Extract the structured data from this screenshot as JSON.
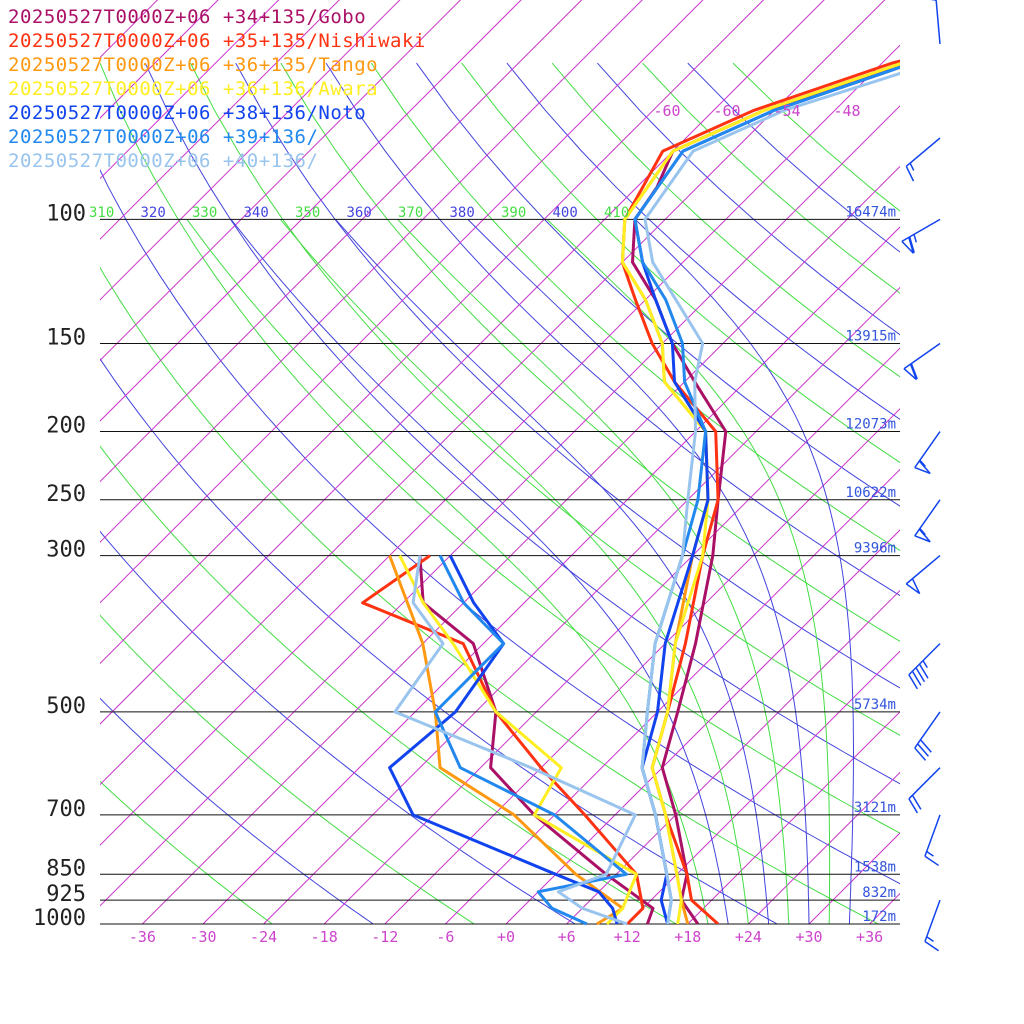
{
  "chart_data": {
    "type": "line",
    "title": "",
    "xlabel": "",
    "ylabel": "",
    "legend_placement": "top-left",
    "x_ticks": [
      "-36",
      "-30",
      "-24",
      "-18",
      "-12",
      "-6",
      "+0",
      "+6",
      "+12",
      "+18",
      "+24",
      "+30",
      "+36"
    ],
    "pressure_levels": [
      {
        "p": 100,
        "label": "100",
        "height": "16474m"
      },
      {
        "p": 150,
        "label": "150",
        "height": "13915m"
      },
      {
        "p": 200,
        "label": "200",
        "height": "12073m"
      },
      {
        "p": 250,
        "label": "250",
        "height": "10622m"
      },
      {
        "p": 300,
        "label": "300",
        "height": "9396m"
      },
      {
        "p": 500,
        "label": "500",
        "height": "5734m"
      },
      {
        "p": 700,
        "label": "700",
        "height": "3121m"
      },
      {
        "p": 850,
        "label": "850",
        "height": "1538m"
      },
      {
        "p": 925,
        "label": "925",
        "height": "832m"
      },
      {
        "p": 1000,
        "label": "1000",
        "height": "172m"
      }
    ],
    "mixing_ratio_labels": [
      "-60",
      "-60",
      "-54",
      "-48"
    ],
    "theta_labels": [
      {
        "v": "310",
        "color": "#44dd44"
      },
      {
        "v": "320",
        "color": "#4444dd"
      },
      {
        "v": "330",
        "color": "#44dd44"
      },
      {
        "v": "340",
        "color": "#4444dd"
      },
      {
        "v": "350",
        "color": "#44dd44"
      },
      {
        "v": "360",
        "color": "#4444dd"
      },
      {
        "v": "370",
        "color": "#44dd44"
      },
      {
        "v": "380",
        "color": "#4444dd"
      },
      {
        "v": "390",
        "color": "#44dd44"
      },
      {
        "v": "400",
        "color": "#4444dd"
      },
      {
        "v": "410",
        "color": "#44dd44"
      }
    ],
    "series": [
      {
        "name": "20250527T0000Z+06 +34+135/Gobo",
        "color": "#aa1166",
        "temperature": [
          [
            1000,
            19
          ],
          [
            925,
            15
          ],
          [
            850,
            13
          ],
          [
            700,
            6
          ],
          [
            600,
            0
          ],
          [
            500,
            -4
          ],
          [
            400,
            -9
          ],
          [
            300,
            -16
          ],
          [
            250,
            -21
          ],
          [
            200,
            -27
          ],
          [
            170,
            -35
          ],
          [
            150,
            -41
          ],
          [
            130,
            -47
          ],
          [
            115,
            -53
          ],
          [
            100,
            -57
          ],
          [
            90,
            -58
          ],
          [
            80,
            -60
          ],
          [
            70,
            -55
          ],
          [
            60,
            -45
          ],
          [
            50,
            -30
          ],
          [
            40,
            -18
          ]
        ],
        "dewpoint": [
          [
            1000,
            14
          ],
          [
            950,
            13
          ],
          [
            850,
            5
          ],
          [
            700,
            -8
          ],
          [
            600,
            -17
          ],
          [
            500,
            -22
          ],
          [
            400,
            -31
          ],
          [
            350,
            -40
          ],
          [
            300,
            -45
          ]
        ]
      },
      {
        "name": "20250527T0000Z+06 +35+135/Nishiwaki",
        "color": "#ff3311",
        "temperature": [
          [
            1000,
            21
          ],
          [
            925,
            16
          ],
          [
            850,
            13
          ],
          [
            700,
            5
          ],
          [
            600,
            -1
          ],
          [
            500,
            -5
          ],
          [
            400,
            -10
          ],
          [
            300,
            -17
          ],
          [
            250,
            -21
          ],
          [
            200,
            -28
          ],
          [
            170,
            -37
          ],
          [
            150,
            -43
          ],
          [
            130,
            -49
          ],
          [
            115,
            -54
          ],
          [
            100,
            -58
          ],
          [
            80,
            -61
          ],
          [
            70,
            -56
          ],
          [
            60,
            -47
          ],
          [
            50,
            -32
          ],
          [
            40,
            -20
          ]
        ],
        "dewpoint": [
          [
            1000,
            12
          ],
          [
            950,
            12
          ],
          [
            850,
            8
          ],
          [
            700,
            -3
          ],
          [
            600,
            -12
          ],
          [
            500,
            -22
          ],
          [
            400,
            -32
          ],
          [
            350,
            -46
          ],
          [
            300,
            -44
          ]
        ]
      },
      {
        "name": "20250527T0000Z+06 +36+135/Tango",
        "color": "#ff9911",
        "temperature": [
          [
            1000,
            18
          ],
          [
            925,
            15
          ],
          [
            850,
            12
          ],
          [
            700,
            5
          ],
          [
            600,
            -1
          ],
          [
            500,
            -5
          ],
          [
            400,
            -11
          ],
          [
            300,
            -18
          ],
          [
            250,
            -22
          ],
          [
            200,
            -29
          ],
          [
            170,
            -38
          ],
          [
            150,
            -42
          ],
          [
            130,
            -48
          ],
          [
            115,
            -54
          ],
          [
            100,
            -58
          ],
          [
            80,
            -60
          ],
          [
            70,
            -55
          ],
          [
            60,
            -46
          ],
          [
            50,
            -31
          ],
          [
            40,
            -19
          ]
        ],
        "dewpoint": [
          [
            1000,
            9
          ],
          [
            950,
            10
          ],
          [
            850,
            2
          ],
          [
            700,
            -10
          ],
          [
            600,
            -22
          ],
          [
            500,
            -28
          ],
          [
            400,
            -36
          ],
          [
            300,
            -48
          ]
        ]
      },
      {
        "name": "20250527T0000Z+06 +36+136/Awara",
        "color": "#ffee22",
        "temperature": [
          [
            1000,
            17
          ],
          [
            925,
            15
          ],
          [
            850,
            12
          ],
          [
            700,
            5
          ],
          [
            600,
            -1
          ],
          [
            500,
            -5
          ],
          [
            400,
            -11
          ],
          [
            300,
            -17
          ],
          [
            250,
            -22
          ],
          [
            200,
            -29
          ],
          [
            170,
            -38
          ],
          [
            150,
            -42
          ],
          [
            130,
            -48
          ],
          [
            115,
            -54
          ],
          [
            100,
            -58
          ],
          [
            80,
            -60
          ],
          [
            70,
            -55
          ],
          [
            60,
            -46
          ],
          [
            50,
            -31
          ],
          [
            40,
            -19
          ]
        ],
        "dewpoint": [
          [
            1000,
            10
          ],
          [
            950,
            10
          ],
          [
            850,
            8
          ],
          [
            700,
            -8
          ],
          [
            600,
            -10
          ],
          [
            500,
            -22
          ],
          [
            400,
            -33
          ],
          [
            350,
            -40
          ],
          [
            300,
            -47
          ]
        ]
      },
      {
        "name": "20250527T0000Z+06 +38+136/Noto",
        "color": "#1144ee",
        "temperature": [
          [
            1000,
            16
          ],
          [
            925,
            13
          ],
          [
            850,
            11
          ],
          [
            700,
            4
          ],
          [
            600,
            -2
          ],
          [
            500,
            -6
          ],
          [
            400,
            -12
          ],
          [
            300,
            -18
          ],
          [
            250,
            -22
          ],
          [
            200,
            -29
          ],
          [
            170,
            -37
          ],
          [
            150,
            -41
          ],
          [
            130,
            -47
          ],
          [
            115,
            -52
          ],
          [
            100,
            -57
          ],
          [
            80,
            -59
          ],
          [
            70,
            -54
          ],
          [
            60,
            -45
          ],
          [
            50,
            -30
          ],
          [
            40,
            -18
          ]
        ],
        "dewpoint": [
          [
            1000,
            11
          ],
          [
            950,
            9
          ],
          [
            900,
            6
          ],
          [
            850,
            0
          ],
          [
            700,
            -20
          ],
          [
            600,
            -27
          ],
          [
            500,
            -26
          ],
          [
            400,
            -28
          ],
          [
            350,
            -35
          ],
          [
            300,
            -42
          ]
        ]
      },
      {
        "name": "20250527T0000Z+06 +39+136/",
        "color": "#2288ee",
        "temperature": [
          [
            1000,
            16
          ],
          [
            925,
            14
          ],
          [
            850,
            11
          ],
          [
            700,
            4
          ],
          [
            600,
            -2
          ],
          [
            500,
            -7
          ],
          [
            400,
            -13
          ],
          [
            300,
            -19
          ],
          [
            250,
            -23
          ],
          [
            200,
            -29
          ],
          [
            170,
            -36
          ],
          [
            150,
            -40
          ],
          [
            130,
            -46
          ],
          [
            115,
            -52
          ],
          [
            100,
            -57
          ],
          [
            80,
            -59
          ],
          [
            70,
            -54
          ],
          [
            60,
            -45
          ],
          [
            50,
            -30
          ],
          [
            40,
            -18
          ]
        ],
        "dewpoint": [
          [
            1000,
            8
          ],
          [
            950,
            3
          ],
          [
            900,
            0
          ],
          [
            850,
            7
          ],
          [
            700,
            -6
          ],
          [
            600,
            -20
          ],
          [
            500,
            -28
          ],
          [
            400,
            -28
          ],
          [
            350,
            -36
          ],
          [
            300,
            -43
          ]
        ]
      },
      {
        "name": "20250527T0000Z+06 +40+136/",
        "color": "#99c4ee",
        "temperature": [
          [
            1000,
            16
          ],
          [
            925,
            14
          ],
          [
            850,
            11
          ],
          [
            700,
            4
          ],
          [
            600,
            -2
          ],
          [
            500,
            -7
          ],
          [
            400,
            -13
          ],
          [
            300,
            -19
          ],
          [
            250,
            -24
          ],
          [
            200,
            -30
          ],
          [
            170,
            -35
          ],
          [
            150,
            -38
          ],
          [
            130,
            -45
          ],
          [
            115,
            -51
          ],
          [
            100,
            -56
          ],
          [
            80,
            -58
          ],
          [
            70,
            -53
          ],
          [
            60,
            -43
          ],
          [
            50,
            -28
          ],
          [
            40,
            -16
          ]
        ],
        "dewpoint": [
          [
            1000,
            12
          ],
          [
            950,
            6
          ],
          [
            900,
            2
          ],
          [
            850,
            5
          ],
          [
            700,
            2
          ],
          [
            600,
            -13
          ],
          [
            500,
            -32
          ],
          [
            400,
            -34
          ],
          [
            350,
            -41
          ],
          [
            300,
            -45
          ]
        ]
      }
    ],
    "wind_barbs": [
      {
        "p": 40,
        "speed_kt": 10,
        "dir_deg": 355
      },
      {
        "p": 80,
        "speed_kt": 15,
        "dir_deg": 230
      },
      {
        "p": 100,
        "speed_kt": 65,
        "dir_deg": 240
      },
      {
        "p": 150,
        "speed_kt": 60,
        "dir_deg": 235
      },
      {
        "p": 200,
        "speed_kt": 55,
        "dir_deg": 215
      },
      {
        "p": 250,
        "speed_kt": 55,
        "dir_deg": 215
      },
      {
        "p": 300,
        "speed_kt": 50,
        "dir_deg": 230
      },
      {
        "p": 400,
        "speed_kt": 45,
        "dir_deg": 225
      },
      {
        "p": 500,
        "speed_kt": 30,
        "dir_deg": 215
      },
      {
        "p": 600,
        "speed_kt": 20,
        "dir_deg": 225
      },
      {
        "p": 700,
        "speed_kt": 15,
        "dir_deg": 200
      },
      {
        "p": 925,
        "speed_kt": 15,
        "dir_deg": 200
      }
    ]
  }
}
